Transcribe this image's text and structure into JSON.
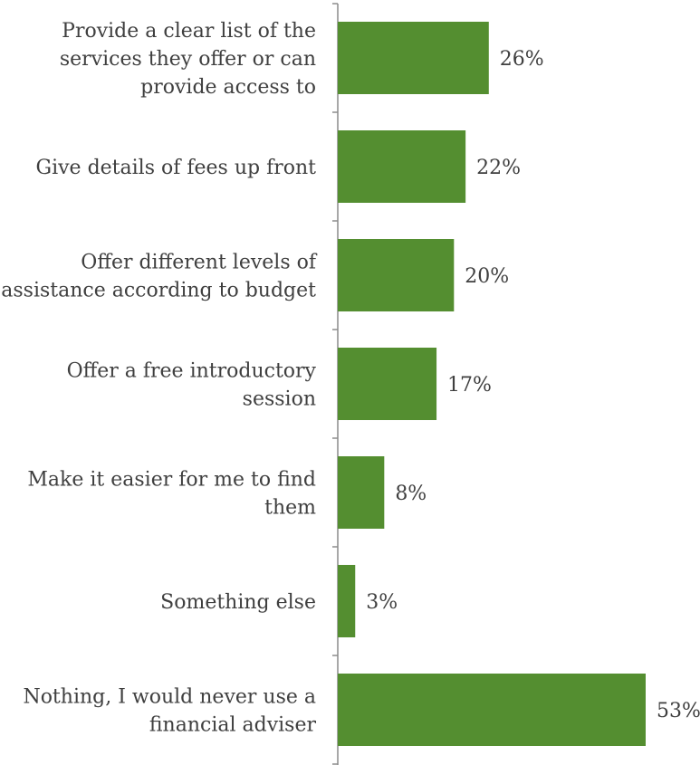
{
  "chart_data": {
    "type": "bar",
    "orientation": "horizontal",
    "categories": [
      [
        "Provide a clear list of the",
        "services they offer or can",
        "provide access to"
      ],
      [
        "Give details of fees up front"
      ],
      [
        "Offer different levels of",
        "assistance according to budget"
      ],
      [
        "Offer a free introductory",
        "session"
      ],
      [
        "Make it easier for me to find",
        "them"
      ],
      [
        "Something else"
      ],
      [
        "Nothing, I would never use a",
        "financial adviser"
      ]
    ],
    "values": [
      26,
      22,
      20,
      17,
      8,
      3,
      53
    ],
    "value_labels": [
      "26%",
      "22%",
      "20%",
      "17%",
      "8%",
      "3%",
      "53%"
    ],
    "unit": "%",
    "xlim": [
      0,
      53
    ],
    "grid": false,
    "legend": "none",
    "bar_color": "#548e30",
    "axis_color": "#8c8c8c",
    "text_color": "#3f3f3f"
  }
}
